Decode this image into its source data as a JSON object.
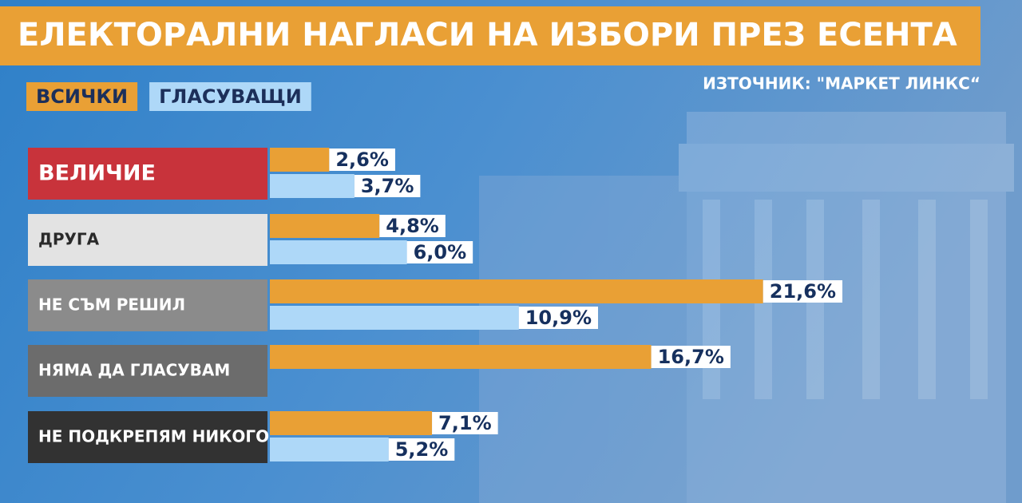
{
  "chart_data": {
    "type": "bar",
    "orientation": "horizontal",
    "title": "ЕЛЕКТОРАЛНИ НАГЛАСИ НА ИЗБОРИ ПРЕЗ ЕСЕНТА",
    "source": "ИЗТОЧНИК: \"МАРКЕТ ЛИНКС“",
    "categories": [
      "ВЕЛИЧИЕ",
      "ДРУГА",
      "НЕ СЪМ РЕШИЛ",
      "НЯМА ДА ГЛАСУВАМ",
      "НЕ ПОДКРЕПЯМ НИКОГО"
    ],
    "series": [
      {
        "name": "ВСИЧКИ",
        "color": "#e9a035",
        "values": [
          2.6,
          4.8,
          21.6,
          16.7,
          7.1
        ],
        "value_labels": [
          "2,6%",
          "4,8%",
          "21,6%",
          "16,7%",
          "7,1%"
        ]
      },
      {
        "name": "ГЛАСУВАЩИ",
        "color": "#aed8f8",
        "values": [
          3.7,
          6.0,
          10.9,
          null,
          5.2
        ],
        "value_labels": [
          "3,7%",
          "6,0%",
          "10,9%",
          null,
          "5,2%"
        ]
      }
    ]
  }
}
